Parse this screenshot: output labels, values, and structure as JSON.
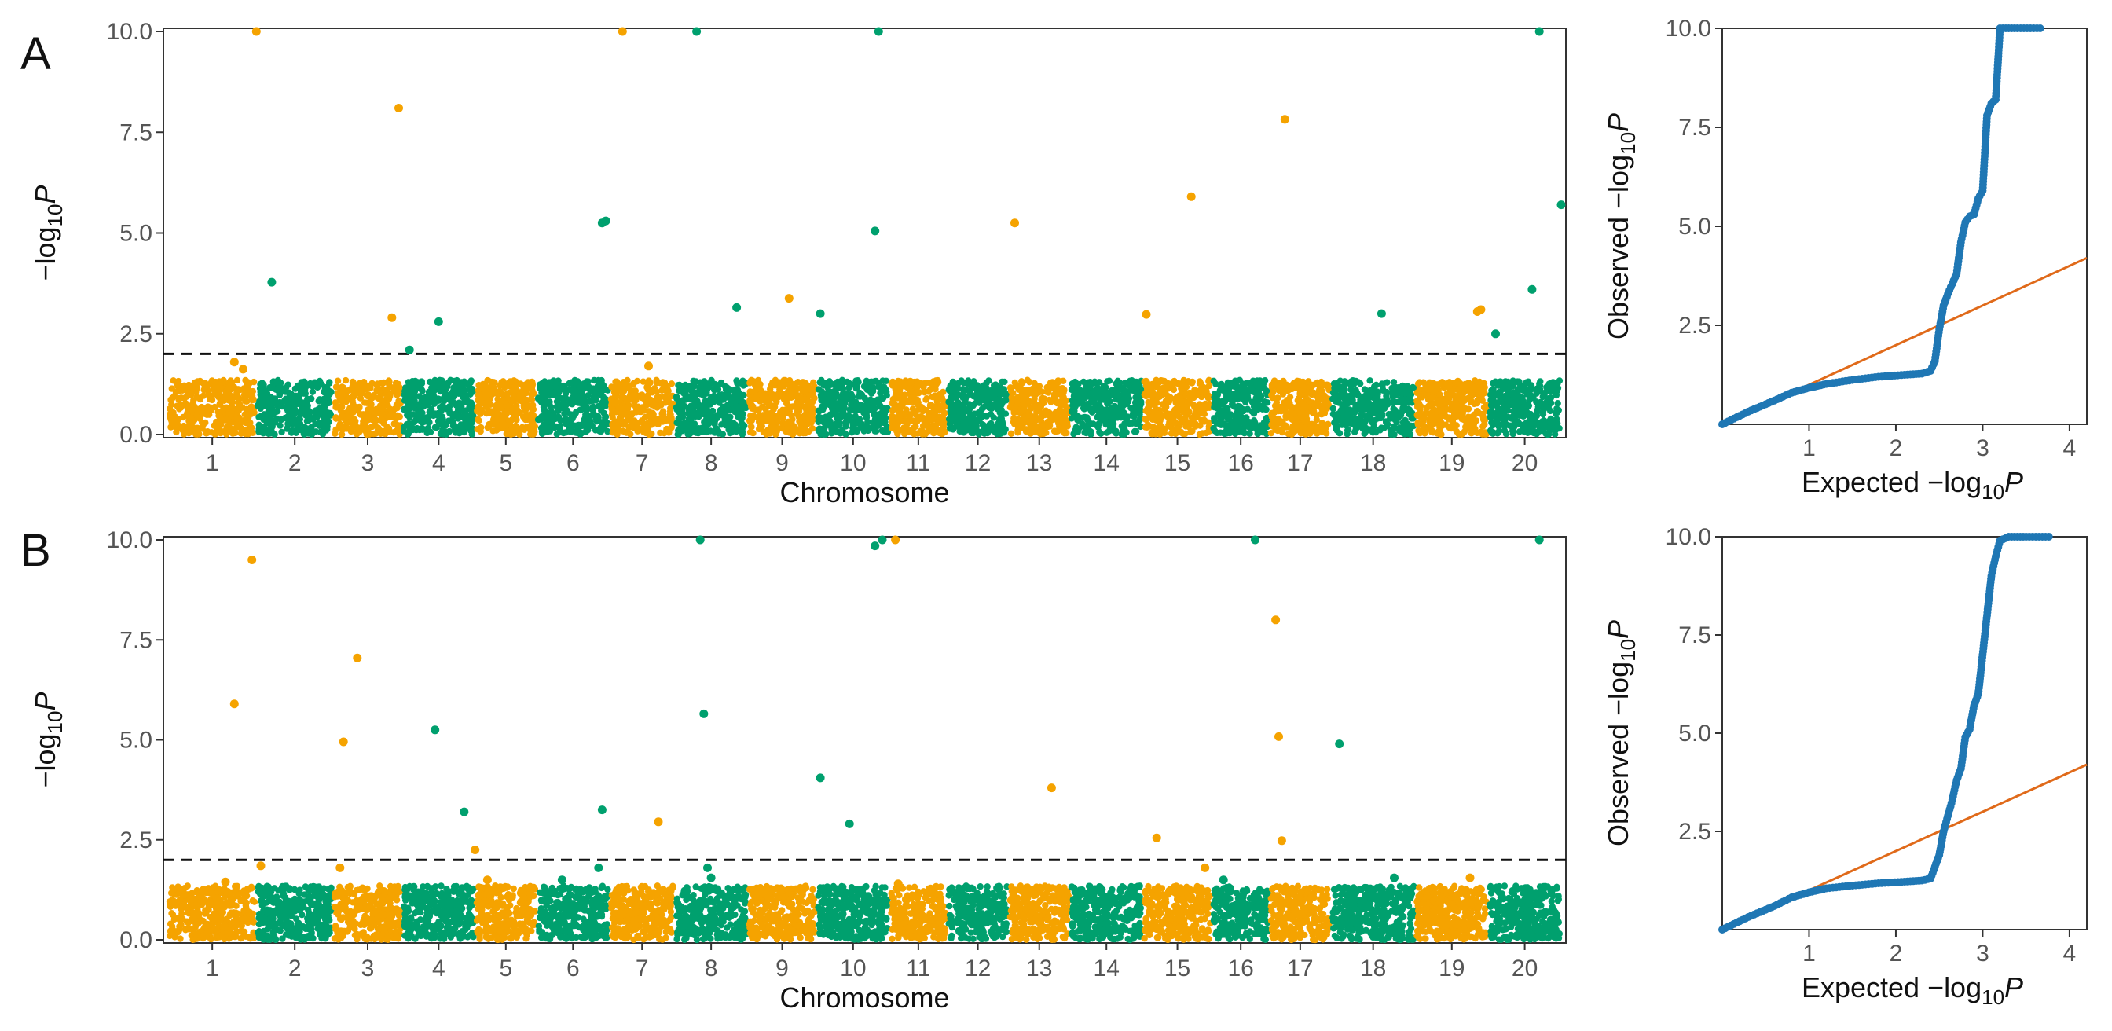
{
  "figure": {
    "panels": [
      {
        "letter": "A"
      },
      {
        "letter": "B"
      }
    ]
  },
  "colors": {
    "orange": "#F5A300",
    "green": "#00A06E",
    "qq_points": "#1F77B4",
    "qq_line": "#E06A1A",
    "threshold": "#111111",
    "axis": "#333333"
  },
  "chart_data": [
    {
      "type": "scatter",
      "kind": "manhattan",
      "panel": "A",
      "title": "",
      "xlabel": "Chromosome",
      "ylabel_main": "−log",
      "ylabel_sub": "10",
      "ylabel_var": "P",
      "ylim": [
        0,
        10
      ],
      "yticks": [
        "0.0",
        "2.5",
        "5.0",
        "7.5",
        "10.0"
      ],
      "threshold": 2.0,
      "chromosomes": [
        "1",
        "2",
        "3",
        "4",
        "5",
        "6",
        "7",
        "8",
        "9",
        "10",
        "11",
        "12",
        "13",
        "14",
        "15",
        "16",
        "17",
        "18",
        "19",
        "20"
      ],
      "chrom_widths": [
        1.15,
        1.0,
        0.9,
        0.95,
        0.8,
        0.95,
        0.85,
        0.95,
        0.9,
        0.95,
        0.75,
        0.8,
        0.8,
        0.95,
        0.9,
        0.75,
        0.8,
        1.1,
        0.95,
        0.95
      ],
      "background_max": 1.35,
      "peaks": [
        {
          "chr": 1,
          "pos": 0.75,
          "y": 1.8
        },
        {
          "chr": 1,
          "pos": 0.85,
          "y": 1.62
        },
        {
          "chr": 1,
          "pos": 1.0,
          "y": 10.0
        },
        {
          "chr": 2,
          "pos": 0.2,
          "y": 3.78
        },
        {
          "chr": 3,
          "pos": 0.85,
          "y": 2.9
        },
        {
          "chr": 3,
          "pos": 0.95,
          "y": 8.1
        },
        {
          "chr": 4,
          "pos": 0.1,
          "y": 2.1
        },
        {
          "chr": 4,
          "pos": 0.5,
          "y": 2.8
        },
        {
          "chr": 6,
          "pos": 0.9,
          "y": 5.25
        },
        {
          "chr": 6,
          "pos": 0.95,
          "y": 5.3
        },
        {
          "chr": 7,
          "pos": 0.2,
          "y": 10.0
        },
        {
          "chr": 7,
          "pos": 0.6,
          "y": 1.7
        },
        {
          "chr": 8,
          "pos": 0.3,
          "y": 10.0
        },
        {
          "chr": 8,
          "pos": 0.85,
          "y": 3.15
        },
        {
          "chr": 9,
          "pos": 0.6,
          "y": 3.38
        },
        {
          "chr": 10,
          "pos": 0.05,
          "y": 3.0
        },
        {
          "chr": 10,
          "pos": 0.85,
          "y": 10.0
        },
        {
          "chr": 10,
          "pos": 0.8,
          "y": 5.05
        },
        {
          "chr": 13,
          "pos": 0.1,
          "y": 5.25
        },
        {
          "chr": 15,
          "pos": 0.05,
          "y": 2.98
        },
        {
          "chr": 15,
          "pos": 0.7,
          "y": 5.9
        },
        {
          "chr": 17,
          "pos": 0.25,
          "y": 7.82
        },
        {
          "chr": 18,
          "pos": 0.6,
          "y": 3.0
        },
        {
          "chr": 19,
          "pos": 0.85,
          "y": 3.05
        },
        {
          "chr": 19,
          "pos": 0.9,
          "y": 3.1
        },
        {
          "chr": 20,
          "pos": 0.1,
          "y": 2.5
        },
        {
          "chr": 20,
          "pos": 0.6,
          "y": 3.6
        },
        {
          "chr": 20,
          "pos": 0.7,
          "y": 10.0
        },
        {
          "chr": 20,
          "pos": 1.0,
          "y": 5.7
        }
      ]
    },
    {
      "type": "scatter",
      "kind": "qq",
      "panel": "A",
      "xlabel_main": "Expected  −log",
      "xlabel_sub": "10",
      "xlabel_var": "P",
      "ylabel_main": "Observed  −log",
      "ylabel_sub": "10",
      "ylabel_var": "P",
      "xlim": [
        0,
        4.2
      ],
      "ylim": [
        0,
        10
      ],
      "xticks": [
        "1",
        "2",
        "3",
        "4"
      ],
      "yticks": [
        "2.5",
        "5.0",
        "7.5",
        "10.0"
      ],
      "diagonal_slope": 1.0,
      "curve": [
        [
          0,
          0
        ],
        [
          0.3,
          0.32
        ],
        [
          0.6,
          0.6
        ],
        [
          0.8,
          0.8
        ],
        [
          1.0,
          0.92
        ],
        [
          1.2,
          1.02
        ],
        [
          1.5,
          1.12
        ],
        [
          1.8,
          1.2
        ],
        [
          2.1,
          1.25
        ],
        [
          2.3,
          1.28
        ],
        [
          2.4,
          1.35
        ],
        [
          2.45,
          1.6
        ],
        [
          2.5,
          2.4
        ],
        [
          2.55,
          3.0
        ],
        [
          2.6,
          3.3
        ],
        [
          2.65,
          3.55
        ],
        [
          2.7,
          3.8
        ],
        [
          2.75,
          4.6
        ],
        [
          2.8,
          5.1
        ],
        [
          2.85,
          5.25
        ],
        [
          2.9,
          5.3
        ],
        [
          2.95,
          5.7
        ],
        [
          3.0,
          5.9
        ],
        [
          3.05,
          7.8
        ],
        [
          3.1,
          8.1
        ],
        [
          3.15,
          8.2
        ],
        [
          3.2,
          10.0
        ],
        [
          3.4,
          10.0
        ],
        [
          3.7,
          10.0
        ]
      ]
    },
    {
      "type": "scatter",
      "kind": "manhattan",
      "panel": "B",
      "title": "",
      "xlabel": "Chromosome",
      "ylabel_main": "−log",
      "ylabel_sub": "10",
      "ylabel_var": "P",
      "ylim": [
        0,
        10
      ],
      "yticks": [
        "0.0",
        "2.5",
        "5.0",
        "7.5",
        "10.0"
      ],
      "threshold": 2.0,
      "chromosomes": [
        "1",
        "2",
        "3",
        "4",
        "5",
        "6",
        "7",
        "8",
        "9",
        "10",
        "11",
        "12",
        "13",
        "14",
        "15",
        "16",
        "17",
        "18",
        "19",
        "20"
      ],
      "chrom_widths": [
        1.15,
        1.0,
        0.9,
        0.95,
        0.8,
        0.95,
        0.85,
        0.95,
        0.9,
        0.95,
        0.75,
        0.8,
        0.8,
        0.95,
        0.9,
        0.75,
        0.8,
        1.1,
        0.95,
        0.95
      ],
      "background_max": 1.35,
      "peaks": [
        {
          "chr": 1,
          "pos": 0.65,
          "y": 1.45
        },
        {
          "chr": 1,
          "pos": 0.75,
          "y": 5.9
        },
        {
          "chr": 1,
          "pos": 0.95,
          "y": 9.5
        },
        {
          "chr": 1,
          "pos": 1.05,
          "y": 1.85
        },
        {
          "chr": 3,
          "pos": 0.1,
          "y": 1.8
        },
        {
          "chr": 3,
          "pos": 0.15,
          "y": 4.95
        },
        {
          "chr": 3,
          "pos": 0.35,
          "y": 7.05
        },
        {
          "chr": 4,
          "pos": 0.45,
          "y": 5.25
        },
        {
          "chr": 4,
          "pos": 0.85,
          "y": 3.2
        },
        {
          "chr": 5,
          "pos": 0.0,
          "y": 2.25
        },
        {
          "chr": 5,
          "pos": 0.2,
          "y": 1.5
        },
        {
          "chr": 6,
          "pos": 0.35,
          "y": 1.5
        },
        {
          "chr": 6,
          "pos": 0.85,
          "y": 1.8
        },
        {
          "chr": 6,
          "pos": 0.9,
          "y": 3.25
        },
        {
          "chr": 7,
          "pos": 0.75,
          "y": 2.95
        },
        {
          "chr": 8,
          "pos": 0.35,
          "y": 10.0
        },
        {
          "chr": 8,
          "pos": 0.4,
          "y": 5.65
        },
        {
          "chr": 8,
          "pos": 0.45,
          "y": 1.8
        },
        {
          "chr": 8,
          "pos": 0.5,
          "y": 1.55
        },
        {
          "chr": 10,
          "pos": 0.05,
          "y": 4.05
        },
        {
          "chr": 10,
          "pos": 0.45,
          "y": 2.9
        },
        {
          "chr": 10,
          "pos": 0.8,
          "y": 9.85
        },
        {
          "chr": 10,
          "pos": 0.9,
          "y": 10.0
        },
        {
          "chr": 11,
          "pos": 0.1,
          "y": 10.0
        },
        {
          "chr": 11,
          "pos": 0.15,
          "y": 1.4
        },
        {
          "chr": 13,
          "pos": 0.7,
          "y": 3.8
        },
        {
          "chr": 15,
          "pos": 0.2,
          "y": 2.55
        },
        {
          "chr": 15,
          "pos": 0.9,
          "y": 1.8
        },
        {
          "chr": 16,
          "pos": 0.2,
          "y": 1.5
        },
        {
          "chr": 16,
          "pos": 0.75,
          "y": 10.0
        },
        {
          "chr": 17,
          "pos": 0.1,
          "y": 8.0
        },
        {
          "chr": 17,
          "pos": 0.15,
          "y": 5.08
        },
        {
          "chr": 17,
          "pos": 0.2,
          "y": 2.48
        },
        {
          "chr": 18,
          "pos": 0.1,
          "y": 4.9
        },
        {
          "chr": 18,
          "pos": 0.75,
          "y": 1.55
        },
        {
          "chr": 19,
          "pos": 0.75,
          "y": 1.55
        },
        {
          "chr": 20,
          "pos": 0.7,
          "y": 10.0
        }
      ]
    },
    {
      "type": "scatter",
      "kind": "qq",
      "panel": "B",
      "xlabel_main": "Expected  −log",
      "xlabel_sub": "10",
      "xlabel_var": "P",
      "ylabel_main": "Observed  −log",
      "ylabel_sub": "10",
      "ylabel_var": "P",
      "xlim": [
        0,
        4.2
      ],
      "ylim": [
        0,
        10
      ],
      "xticks": [
        "1",
        "2",
        "3",
        "4"
      ],
      "yticks": [
        "2.5",
        "5.0",
        "7.5",
        "10.0"
      ],
      "diagonal_slope": 1.0,
      "curve": [
        [
          0,
          0
        ],
        [
          0.3,
          0.32
        ],
        [
          0.6,
          0.6
        ],
        [
          0.8,
          0.82
        ],
        [
          1.0,
          0.95
        ],
        [
          1.2,
          1.05
        ],
        [
          1.5,
          1.12
        ],
        [
          1.8,
          1.18
        ],
        [
          2.1,
          1.22
        ],
        [
          2.3,
          1.25
        ],
        [
          2.4,
          1.3
        ],
        [
          2.45,
          1.6
        ],
        [
          2.5,
          1.9
        ],
        [
          2.55,
          2.5
        ],
        [
          2.6,
          2.9
        ],
        [
          2.65,
          3.3
        ],
        [
          2.7,
          3.8
        ],
        [
          2.75,
          4.1
        ],
        [
          2.8,
          4.9
        ],
        [
          2.85,
          5.1
        ],
        [
          2.9,
          5.7
        ],
        [
          2.95,
          6.0
        ],
        [
          3.0,
          7.0
        ],
        [
          3.05,
          8.0
        ],
        [
          3.1,
          9.0
        ],
        [
          3.15,
          9.5
        ],
        [
          3.2,
          9.9
        ],
        [
          3.3,
          10.0
        ],
        [
          3.5,
          10.0
        ],
        [
          3.8,
          10.0
        ]
      ]
    }
  ]
}
